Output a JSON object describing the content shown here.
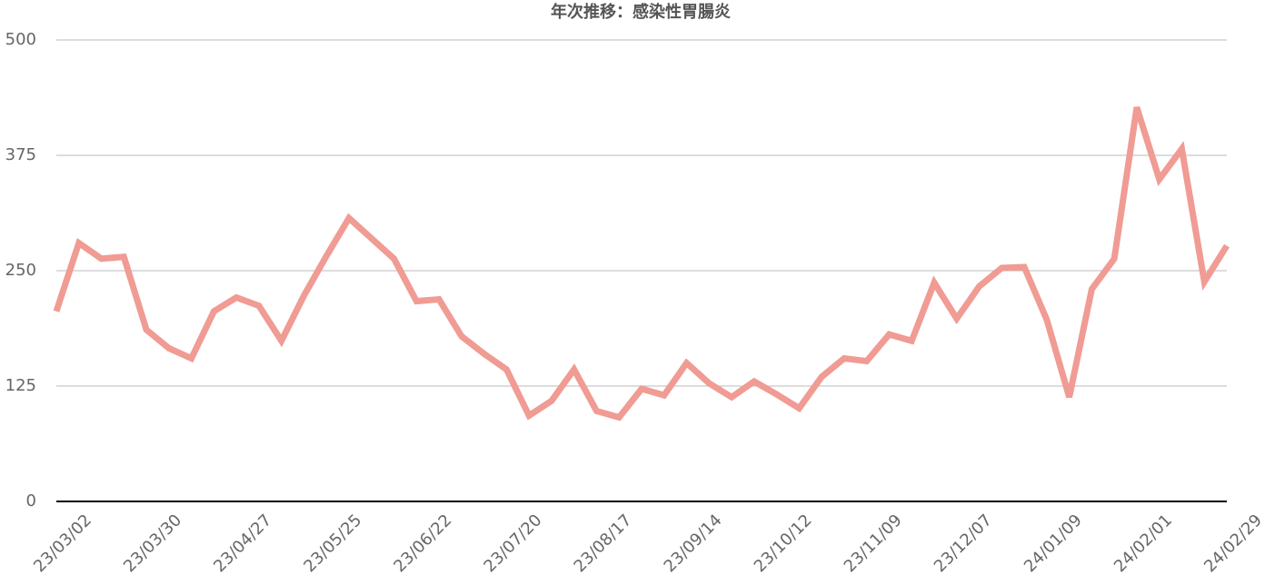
{
  "chart_data": {
    "type": "line",
    "title": "年次推移：感染性胃腸炎",
    "categories": [
      "23/03/02",
      null,
      null,
      null,
      "23/03/30",
      null,
      null,
      null,
      "23/04/27",
      null,
      null,
      null,
      "23/05/25",
      null,
      null,
      null,
      "23/06/22",
      null,
      null,
      null,
      "23/07/20",
      null,
      null,
      null,
      "23/08/17",
      null,
      null,
      null,
      "23/09/14",
      null,
      null,
      null,
      "23/10/12",
      null,
      null,
      null,
      "23/11/09",
      null,
      null,
      null,
      "23/12/07",
      null,
      null,
      null,
      "24/01/09",
      null,
      null,
      null,
      "24/02/01",
      null,
      null,
      null,
      "24/02/29"
    ],
    "series": [
      {
        "color": "#f09b93",
        "values": [
          206,
          280,
          263,
          265,
          186,
          166,
          155,
          206,
          221,
          212,
          174,
          223,
          266,
          307,
          285,
          263,
          217,
          219,
          179,
          160,
          143,
          93,
          109,
          143,
          98,
          91,
          122,
          115,
          150,
          128,
          113,
          130,
          116,
          101,
          135,
          155,
          152,
          181,
          174,
          237,
          198,
          233,
          253,
          254,
          197,
          113,
          230,
          263,
          427,
          349,
          382,
          238,
          277
        ]
      }
    ],
    "ylim": [
      0,
      500
    ],
    "yticks": [
      0,
      125,
      250,
      375,
      500
    ],
    "grid": true
  }
}
